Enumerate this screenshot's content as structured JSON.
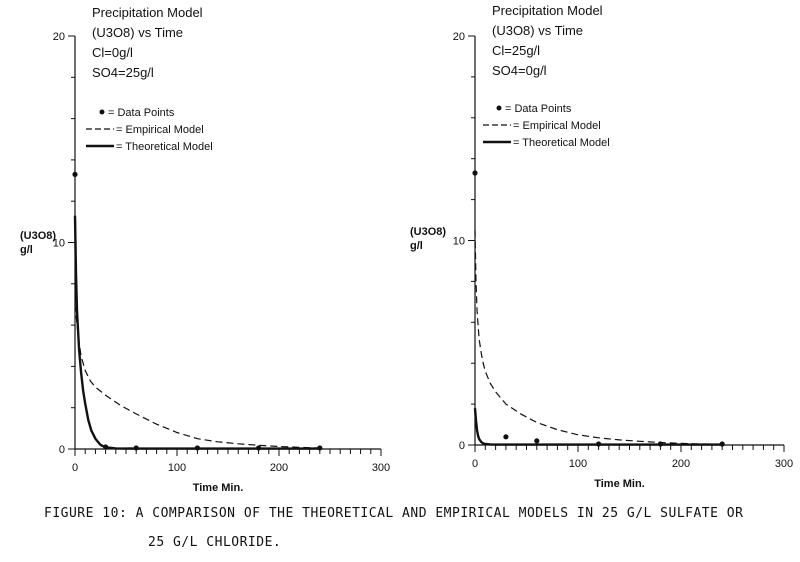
{
  "caption": {
    "line1": "FIGURE 10:  A COMPARISON OF THE THEORETICAL AND EMPIRICAL MODELS IN 25 G/L SULFATE OR",
    "line2": "25 G/L CHLORIDE."
  },
  "chart_data": [
    {
      "type": "line",
      "title_lines": [
        "Precipitation Model",
        "(U3O8) vs Time",
        "Cl=0g/l",
        "SO4=25g/l"
      ],
      "xlabel": "Time Min.",
      "ylabel_lines": [
        "(U3O8)",
        "g/l"
      ],
      "xlim": [
        0,
        300
      ],
      "ylim": [
        0,
        20
      ],
      "xticks": [
        0,
        100,
        200,
        300
      ],
      "yticks": [
        0,
        10,
        20
      ],
      "grid": false,
      "legend_position": "top-left",
      "legend": [
        "Data Points",
        "Empirical Model",
        "Theoretical Model"
      ],
      "series": [
        {
          "name": "Data Points",
          "kind": "scatter",
          "x": [
            0,
            30,
            60,
            120,
            180,
            240
          ],
          "y": [
            13.3,
            0.1,
            0.05,
            0.05,
            0.05,
            0.05
          ]
        },
        {
          "name": "Empirical Model",
          "kind": "dashed",
          "x": [
            0,
            3,
            6,
            10,
            15,
            20,
            30,
            45,
            60,
            80,
            100,
            120,
            140,
            160,
            180,
            200,
            220,
            240
          ],
          "y": [
            7.0,
            5.5,
            4.5,
            3.8,
            3.3,
            3.0,
            2.6,
            2.1,
            1.7,
            1.2,
            0.8,
            0.5,
            0.35,
            0.25,
            0.18,
            0.12,
            0.08,
            0.05
          ]
        },
        {
          "name": "Theoretical Model",
          "kind": "solid",
          "x": [
            0,
            1,
            2,
            4,
            6,
            8,
            10,
            13,
            16,
            20,
            25,
            30,
            40,
            60,
            100,
            150,
            200,
            240
          ],
          "y": [
            11.3,
            8.5,
            6.7,
            4.8,
            3.7,
            2.8,
            2.2,
            1.4,
            0.9,
            0.5,
            0.2,
            0.08,
            0.03,
            0.02,
            0.02,
            0.02,
            0.02,
            0.02
          ]
        }
      ]
    },
    {
      "type": "line",
      "title_lines": [
        "Precipitation Model",
        "(U3O8) vs Time",
        "Cl=25g/l",
        "SO4=0g/l"
      ],
      "xlabel": "Time Min.",
      "ylabel_lines": [
        "(U3O8)",
        "g/l"
      ],
      "xlim": [
        0,
        300
      ],
      "ylim": [
        0,
        20
      ],
      "xticks": [
        0,
        100,
        200,
        300
      ],
      "yticks": [
        0,
        10,
        20
      ],
      "grid": false,
      "legend_position": "top-left",
      "legend": [
        "Data Points",
        "Empirical Model",
        "Theoretical Model"
      ],
      "series": [
        {
          "name": "Data Points",
          "kind": "scatter",
          "x": [
            0,
            30,
            60,
            120,
            180,
            240
          ],
          "y": [
            13.3,
            0.4,
            0.2,
            0.05,
            0.05,
            0.05
          ]
        },
        {
          "name": "Empirical Model",
          "kind": "dashed",
          "x": [
            0,
            1,
            2,
            4,
            6,
            8,
            10,
            15,
            20,
            30,
            45,
            60,
            80,
            100,
            120,
            140,
            160,
            180,
            200,
            220,
            240
          ],
          "y": [
            10.5,
            8.0,
            6.5,
            5.2,
            4.5,
            4.0,
            3.6,
            3.0,
            2.6,
            2.0,
            1.5,
            1.1,
            0.75,
            0.5,
            0.35,
            0.25,
            0.18,
            0.12,
            0.08,
            0.05,
            0.04
          ]
        },
        {
          "name": "Theoretical Model",
          "kind": "solid",
          "x": [
            0,
            1,
            2,
            3,
            4,
            6,
            8,
            10,
            15,
            20,
            30,
            60,
            120,
            180,
            240
          ],
          "y": [
            1.8,
            1.2,
            0.7,
            0.45,
            0.3,
            0.15,
            0.08,
            0.05,
            0.03,
            0.02,
            0.02,
            0.02,
            0.02,
            0.02,
            0.02
          ]
        }
      ]
    }
  ]
}
